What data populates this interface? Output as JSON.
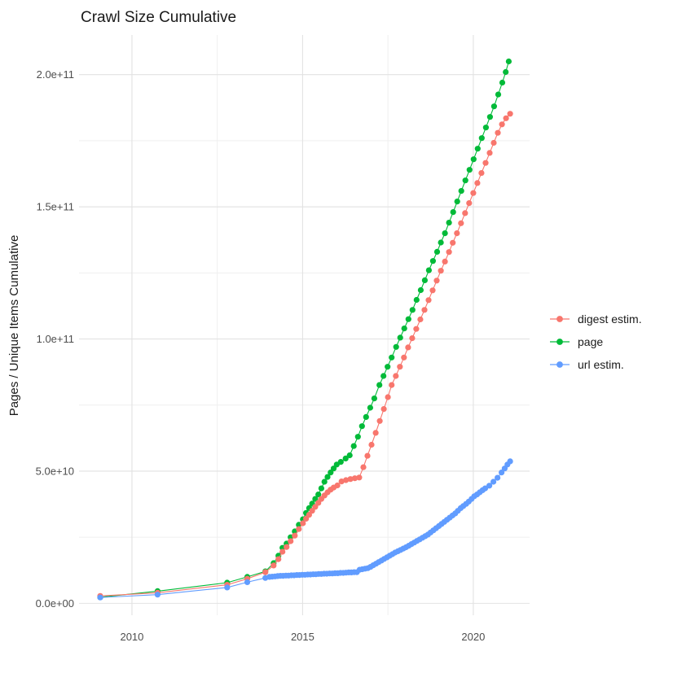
{
  "page": {
    "title": "Crawl Size Cumulative"
  },
  "chart_data": {
    "type": "scatter",
    "title": "Crawl Size Cumulative",
    "xlabel": "",
    "ylabel": "Pages / Unique Items Cumulative",
    "legend_position": "right",
    "grid": true,
    "background": "#ffffff",
    "grid_major_color": "#e2e2e2",
    "grid_minor_color": "#efefef",
    "y_unit_multiplier": 10000000000.0,
    "x_domain": [
      2008.45,
      2021.65
    ],
    "y_domain": [
      -0.45,
      21.5
    ],
    "x_ticks": [
      {
        "value": 2010,
        "label": "2010"
      },
      {
        "value": 2015,
        "label": "2015"
      },
      {
        "value": 2020,
        "label": "2020"
      }
    ],
    "x_minor_ticks": [
      2012.5,
      2017.5
    ],
    "y_ticks": [
      {
        "value": 0,
        "label": "0.0e+00"
      },
      {
        "value": 5,
        "label": "5.0e+10"
      },
      {
        "value": 10,
        "label": "1.0e+11"
      },
      {
        "value": 15,
        "label": "1.5e+11"
      },
      {
        "value": 20,
        "label": "2.0e+11"
      }
    ],
    "y_minor_ticks": [
      2.5,
      7.5,
      12.5,
      17.5
    ],
    "series": [
      {
        "name": "digest estim.",
        "color": "#F8766D",
        "points": [
          [
            2009.07,
            0.28
          ],
          [
            2010.75,
            0.4
          ],
          [
            2012.79,
            0.7
          ],
          [
            2013.38,
            0.93
          ],
          [
            2013.91,
            1.18
          ],
          [
            2014.15,
            1.43
          ],
          [
            2014.29,
            1.67
          ],
          [
            2014.41,
            1.95
          ],
          [
            2014.53,
            2.13
          ],
          [
            2014.65,
            2.35
          ],
          [
            2014.77,
            2.56
          ],
          [
            2014.89,
            2.81
          ],
          [
            2015.01,
            3.03
          ],
          [
            2015.1,
            3.2
          ],
          [
            2015.19,
            3.35
          ],
          [
            2015.28,
            3.5
          ],
          [
            2015.37,
            3.65
          ],
          [
            2015.46,
            3.8
          ],
          [
            2015.55,
            3.95
          ],
          [
            2015.64,
            4.08
          ],
          [
            2015.73,
            4.2
          ],
          [
            2015.82,
            4.3
          ],
          [
            2015.91,
            4.38
          ],
          [
            2016.02,
            4.46
          ],
          [
            2016.14,
            4.61
          ],
          [
            2016.27,
            4.66
          ],
          [
            2016.4,
            4.7
          ],
          [
            2016.53,
            4.73
          ],
          [
            2016.66,
            4.76
          ],
          [
            2016.78,
            5.15
          ],
          [
            2016.9,
            5.58
          ],
          [
            2017.02,
            6.0
          ],
          [
            2017.14,
            6.45
          ],
          [
            2017.26,
            6.9
          ],
          [
            2017.38,
            7.35
          ],
          [
            2017.5,
            7.8
          ],
          [
            2017.61,
            8.26
          ],
          [
            2017.73,
            8.6
          ],
          [
            2017.85,
            8.95
          ],
          [
            2017.97,
            9.3
          ],
          [
            2018.09,
            9.68
          ],
          [
            2018.21,
            10.03
          ],
          [
            2018.33,
            10.38
          ],
          [
            2018.45,
            10.74
          ],
          [
            2018.57,
            11.1
          ],
          [
            2018.69,
            11.47
          ],
          [
            2018.81,
            11.84
          ],
          [
            2018.93,
            12.21
          ],
          [
            2019.05,
            12.58
          ],
          [
            2019.17,
            12.93
          ],
          [
            2019.29,
            13.29
          ],
          [
            2019.4,
            13.64
          ],
          [
            2019.52,
            14.0
          ],
          [
            2019.64,
            14.38
          ],
          [
            2019.76,
            14.76
          ],
          [
            2019.88,
            15.14
          ],
          [
            2020.0,
            15.52
          ],
          [
            2020.12,
            15.9
          ],
          [
            2020.24,
            16.28
          ],
          [
            2020.36,
            16.66
          ],
          [
            2020.48,
            17.04
          ],
          [
            2020.6,
            17.42
          ],
          [
            2020.72,
            17.8
          ],
          [
            2020.84,
            18.12
          ],
          [
            2020.96,
            18.35
          ],
          [
            2021.08,
            18.52
          ]
        ]
      },
      {
        "name": "page",
        "color": "#00BA38",
        "points": [
          [
            2009.07,
            0.23
          ],
          [
            2010.75,
            0.46
          ],
          [
            2012.79,
            0.78
          ],
          [
            2013.38,
            1.0
          ],
          [
            2013.91,
            1.21
          ],
          [
            2014.15,
            1.52
          ],
          [
            2014.29,
            1.8
          ],
          [
            2014.41,
            2.1
          ],
          [
            2014.53,
            2.26
          ],
          [
            2014.65,
            2.5
          ],
          [
            2014.77,
            2.72
          ],
          [
            2014.89,
            2.97
          ],
          [
            2015.01,
            3.18
          ],
          [
            2015.1,
            3.42
          ],
          [
            2015.19,
            3.6
          ],
          [
            2015.28,
            3.77
          ],
          [
            2015.37,
            3.95
          ],
          [
            2015.46,
            4.12
          ],
          [
            2015.55,
            4.35
          ],
          [
            2015.64,
            4.6
          ],
          [
            2015.73,
            4.78
          ],
          [
            2015.82,
            4.95
          ],
          [
            2015.91,
            5.1
          ],
          [
            2016.0,
            5.25
          ],
          [
            2016.12,
            5.35
          ],
          [
            2016.26,
            5.48
          ],
          [
            2016.38,
            5.6
          ],
          [
            2016.5,
            5.95
          ],
          [
            2016.62,
            6.3
          ],
          [
            2016.74,
            6.7
          ],
          [
            2016.86,
            7.05
          ],
          [
            2016.98,
            7.4
          ],
          [
            2017.1,
            7.75
          ],
          [
            2017.25,
            8.26
          ],
          [
            2017.37,
            8.6
          ],
          [
            2017.49,
            8.95
          ],
          [
            2017.61,
            9.3
          ],
          [
            2017.74,
            9.7
          ],
          [
            2017.86,
            10.05
          ],
          [
            2017.98,
            10.4
          ],
          [
            2018.1,
            10.75
          ],
          [
            2018.22,
            11.1
          ],
          [
            2018.34,
            11.48
          ],
          [
            2018.46,
            11.85
          ],
          [
            2018.58,
            12.22
          ],
          [
            2018.7,
            12.6
          ],
          [
            2018.82,
            12.95
          ],
          [
            2018.94,
            13.3
          ],
          [
            2019.05,
            13.65
          ],
          [
            2019.17,
            14.0
          ],
          [
            2019.29,
            14.4
          ],
          [
            2019.41,
            14.8
          ],
          [
            2019.53,
            15.2
          ],
          [
            2019.65,
            15.6
          ],
          [
            2019.77,
            16.0
          ],
          [
            2019.89,
            16.4
          ],
          [
            2020.01,
            16.8
          ],
          [
            2020.13,
            17.2
          ],
          [
            2020.25,
            17.6
          ],
          [
            2020.37,
            18.0
          ],
          [
            2020.49,
            18.4
          ],
          [
            2020.61,
            18.8
          ],
          [
            2020.73,
            19.25
          ],
          [
            2020.85,
            19.7
          ],
          [
            2020.95,
            20.1
          ],
          [
            2021.04,
            20.5
          ]
        ]
      },
      {
        "name": "url estim.",
        "color": "#619CFF",
        "points": [
          [
            2009.07,
            0.22
          ],
          [
            2010.75,
            0.33
          ],
          [
            2012.79,
            0.6
          ],
          [
            2013.38,
            0.8
          ],
          [
            2013.91,
            0.96
          ],
          [
            2014.03,
            1.0
          ],
          [
            2014.11,
            1.01
          ],
          [
            2014.19,
            1.02
          ],
          [
            2014.27,
            1.03
          ],
          [
            2014.35,
            1.04
          ],
          [
            2014.43,
            1.04
          ],
          [
            2014.51,
            1.05
          ],
          [
            2014.59,
            1.05
          ],
          [
            2014.67,
            1.06
          ],
          [
            2014.75,
            1.06
          ],
          [
            2014.83,
            1.07
          ],
          [
            2014.91,
            1.07
          ],
          [
            2014.99,
            1.08
          ],
          [
            2015.07,
            1.08
          ],
          [
            2015.15,
            1.09
          ],
          [
            2015.23,
            1.09
          ],
          [
            2015.31,
            1.1
          ],
          [
            2015.39,
            1.1
          ],
          [
            2015.47,
            1.11
          ],
          [
            2015.55,
            1.11
          ],
          [
            2015.63,
            1.12
          ],
          [
            2015.71,
            1.12
          ],
          [
            2015.79,
            1.13
          ],
          [
            2015.87,
            1.13
          ],
          [
            2015.95,
            1.14
          ],
          [
            2016.03,
            1.14
          ],
          [
            2016.11,
            1.15
          ],
          [
            2016.19,
            1.15
          ],
          [
            2016.27,
            1.16
          ],
          [
            2016.35,
            1.17
          ],
          [
            2016.43,
            1.17
          ],
          [
            2016.51,
            1.18
          ],
          [
            2016.59,
            1.18
          ],
          [
            2016.67,
            1.27
          ],
          [
            2016.75,
            1.29
          ],
          [
            2016.83,
            1.31
          ],
          [
            2016.91,
            1.33
          ],
          [
            2016.99,
            1.38
          ],
          [
            2017.07,
            1.44
          ],
          [
            2017.15,
            1.5
          ],
          [
            2017.23,
            1.56
          ],
          [
            2017.31,
            1.62
          ],
          [
            2017.39,
            1.68
          ],
          [
            2017.47,
            1.74
          ],
          [
            2017.55,
            1.8
          ],
          [
            2017.63,
            1.86
          ],
          [
            2017.71,
            1.92
          ],
          [
            2017.79,
            1.97
          ],
          [
            2017.87,
            2.02
          ],
          [
            2017.95,
            2.07
          ],
          [
            2018.03,
            2.12
          ],
          [
            2018.11,
            2.18
          ],
          [
            2018.19,
            2.24
          ],
          [
            2018.27,
            2.3
          ],
          [
            2018.35,
            2.36
          ],
          [
            2018.43,
            2.42
          ],
          [
            2018.51,
            2.48
          ],
          [
            2018.59,
            2.54
          ],
          [
            2018.67,
            2.6
          ],
          [
            2018.75,
            2.68
          ],
          [
            2018.83,
            2.76
          ],
          [
            2018.91,
            2.84
          ],
          [
            2018.99,
            2.92
          ],
          [
            2019.07,
            3.0
          ],
          [
            2019.15,
            3.08
          ],
          [
            2019.23,
            3.16
          ],
          [
            2019.31,
            3.24
          ],
          [
            2019.39,
            3.32
          ],
          [
            2019.47,
            3.4
          ],
          [
            2019.55,
            3.5
          ],
          [
            2019.63,
            3.6
          ],
          [
            2019.71,
            3.68
          ],
          [
            2019.79,
            3.76
          ],
          [
            2019.87,
            3.85
          ],
          [
            2019.95,
            3.95
          ],
          [
            2020.03,
            4.05
          ],
          [
            2020.11,
            4.12
          ],
          [
            2020.19,
            4.2
          ],
          [
            2020.27,
            4.28
          ],
          [
            2020.35,
            4.35
          ],
          [
            2020.47,
            4.45
          ],
          [
            2020.59,
            4.6
          ],
          [
            2020.71,
            4.75
          ],
          [
            2020.83,
            4.95
          ],
          [
            2020.92,
            5.1
          ],
          [
            2021.0,
            5.25
          ],
          [
            2021.08,
            5.37
          ]
        ]
      }
    ]
  }
}
